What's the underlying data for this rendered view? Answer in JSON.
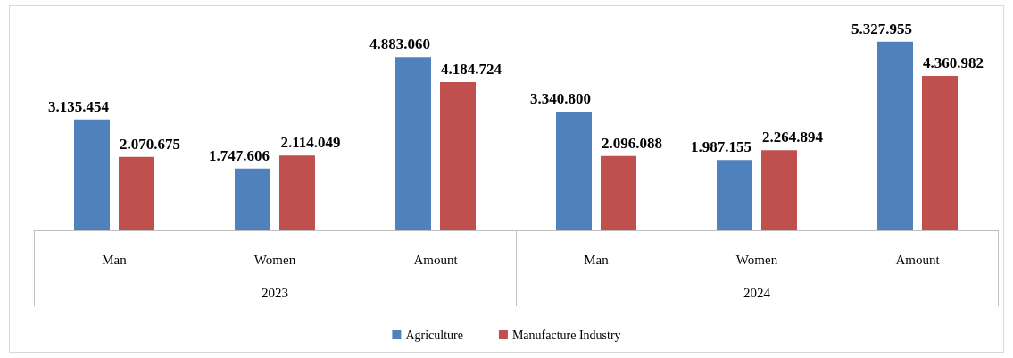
{
  "chart_data": {
    "type": "bar",
    "categories": [
      "Man",
      "Women",
      "Amount",
      "Man",
      "Women",
      "Amount"
    ],
    "annotations": [
      "2023",
      "2024"
    ],
    "series": [
      {
        "name": "Agriculture",
        "color": "#4f81bd",
        "values": [
          3135454,
          1747606,
          4883060,
          3340800,
          1987155,
          5327955
        ],
        "value_labels": [
          "3.135.454",
          "1.747.606",
          "4.883.060",
          "3.340.800",
          "1.987.155",
          "5.327.955"
        ]
      },
      {
        "name": "Manufacture Industry",
        "color": "#c0504d",
        "values": [
          2070675,
          2114049,
          4184724,
          2096088,
          2264894,
          4360982
        ],
        "value_labels": [
          "2.070.675",
          "2.114.049",
          "4.184.724",
          "2.096.088",
          "2.264.894",
          "4.360.982"
        ]
      }
    ],
    "legend": "bottom"
  }
}
